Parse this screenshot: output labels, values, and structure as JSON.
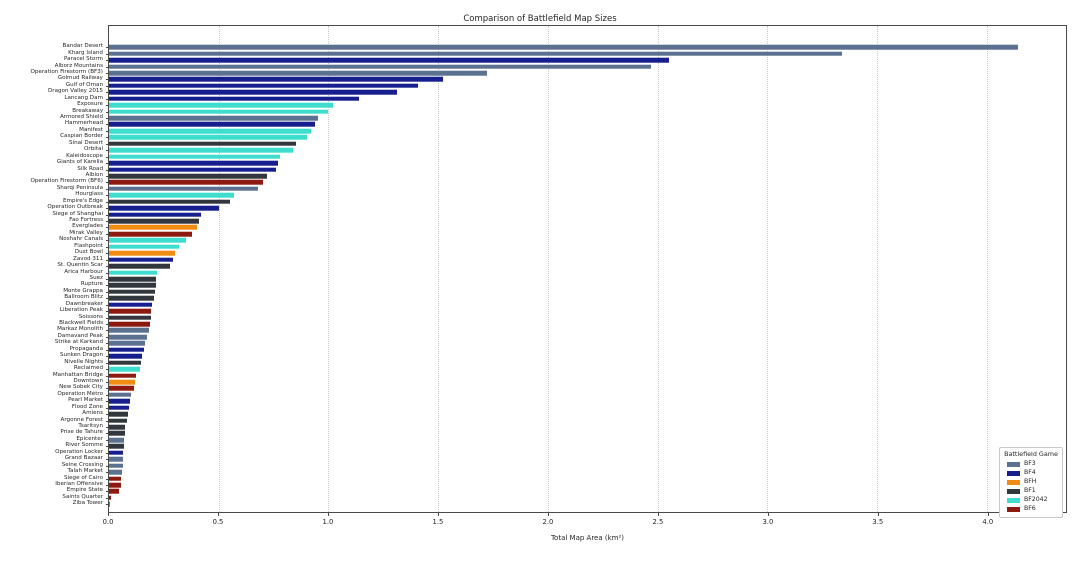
{
  "chart_data": {
    "type": "bar",
    "orientation": "horizontal",
    "title": "Comparison of Battlefield Map Sizes",
    "xlabel": "Total Map Area (km²)",
    "x_min": 0,
    "x_max": 4.36,
    "x_ticks": [
      0.0,
      0.5,
      1.0,
      1.5,
      2.0,
      2.5,
      3.0,
      3.5,
      4.0
    ],
    "grid": "dotted-vertical",
    "legend_title": "Battlefield Game",
    "legend_position": "lower right",
    "games": [
      {
        "label": "BF3",
        "color": "#5c708f"
      },
      {
        "label": "BF4",
        "color": "#171f8f"
      },
      {
        "label": "BFH",
        "color": "#f08c12"
      },
      {
        "label": "BF1",
        "color": "#31373d"
      },
      {
        "label": "BF2042",
        "color": "#3fddcd"
      },
      {
        "label": "BF6",
        "color": "#8c1a10"
      }
    ],
    "maps": [
      {
        "name": "Bandar Desert",
        "area_km2": 4.14,
        "game": "BF3"
      },
      {
        "name": "Kharg Island",
        "area_km2": 3.34,
        "game": "BF3"
      },
      {
        "name": "Paracel Storm",
        "area_km2": 2.55,
        "game": "BF4"
      },
      {
        "name": "Alborz Mountains",
        "area_km2": 2.47,
        "game": "BF3"
      },
      {
        "name": "Operation Firestorm (BF3)",
        "area_km2": 1.72,
        "game": "BF3"
      },
      {
        "name": "Golmud Railway",
        "area_km2": 1.52,
        "game": "BF4"
      },
      {
        "name": "Gulf of Oman",
        "area_km2": 1.41,
        "game": "BF4"
      },
      {
        "name": "Dragon Valley 2015",
        "area_km2": 1.31,
        "game": "BF4"
      },
      {
        "name": "Lancang Dam",
        "area_km2": 1.14,
        "game": "BF4"
      },
      {
        "name": "Exposure",
        "area_km2": 1.02,
        "game": "BF2042"
      },
      {
        "name": "Breakaway",
        "area_km2": 1.0,
        "game": "BF2042"
      },
      {
        "name": "Armored Shield",
        "area_km2": 0.95,
        "game": "BF3"
      },
      {
        "name": "Hammerhead",
        "area_km2": 0.94,
        "game": "BF4"
      },
      {
        "name": "Manifest",
        "area_km2": 0.92,
        "game": "BF2042"
      },
      {
        "name": "Caspian Border",
        "area_km2": 0.9,
        "game": "BF2042"
      },
      {
        "name": "Sinai Desert",
        "area_km2": 0.85,
        "game": "BF1"
      },
      {
        "name": "Orbital",
        "area_km2": 0.84,
        "game": "BF2042"
      },
      {
        "name": "Kaleidoscope",
        "area_km2": 0.78,
        "game": "BF2042"
      },
      {
        "name": "Giants of Karelia",
        "area_km2": 0.77,
        "game": "BF4"
      },
      {
        "name": "Silk Road",
        "area_km2": 0.76,
        "game": "BF4"
      },
      {
        "name": "Albion",
        "area_km2": 0.72,
        "game": "BF1"
      },
      {
        "name": "Operation Firestorm (BF6)",
        "area_km2": 0.7,
        "game": "BF6"
      },
      {
        "name": "Sharqi Peninsula",
        "area_km2": 0.68,
        "game": "BF3"
      },
      {
        "name": "Hourglass",
        "area_km2": 0.57,
        "game": "BF2042"
      },
      {
        "name": "Empire's Edge",
        "area_km2": 0.55,
        "game": "BF1"
      },
      {
        "name": "Operation Outbreak",
        "area_km2": 0.5,
        "game": "BF4"
      },
      {
        "name": "Siege of Shanghai",
        "area_km2": 0.42,
        "game": "BF4"
      },
      {
        "name": "Fao Fortress",
        "area_km2": 0.41,
        "game": "BF1"
      },
      {
        "name": "Everglades",
        "area_km2": 0.4,
        "game": "BFH"
      },
      {
        "name": "Mirak Valley",
        "area_km2": 0.38,
        "game": "BF6"
      },
      {
        "name": "Noshahr Canals",
        "area_km2": 0.35,
        "game": "BF2042"
      },
      {
        "name": "Flashpoint",
        "area_km2": 0.32,
        "game": "BF2042"
      },
      {
        "name": "Dust Bowl",
        "area_km2": 0.3,
        "game": "BFH"
      },
      {
        "name": "Zavod 311",
        "area_km2": 0.29,
        "game": "BF4"
      },
      {
        "name": "St. Quentin Scar",
        "area_km2": 0.28,
        "game": "BF1"
      },
      {
        "name": "Arica Harbour",
        "area_km2": 0.22,
        "game": "BF2042"
      },
      {
        "name": "Suez",
        "area_km2": 0.215,
        "game": "BF1"
      },
      {
        "name": "Rupture",
        "area_km2": 0.212,
        "game": "BF1"
      },
      {
        "name": "Monte Grappa",
        "area_km2": 0.21,
        "game": "BF1"
      },
      {
        "name": "Ballroom Blitz",
        "area_km2": 0.205,
        "game": "BF1"
      },
      {
        "name": "Dawnbreaker",
        "area_km2": 0.195,
        "game": "BF4"
      },
      {
        "name": "Liberation Peak",
        "area_km2": 0.192,
        "game": "BF6"
      },
      {
        "name": "Soissons",
        "area_km2": 0.19,
        "game": "BF1"
      },
      {
        "name": "Blackwell Fields",
        "area_km2": 0.188,
        "game": "BF6"
      },
      {
        "name": "Markaz Monolith",
        "area_km2": 0.18,
        "game": "BF3"
      },
      {
        "name": "Damavand Peak",
        "area_km2": 0.175,
        "game": "BF3"
      },
      {
        "name": "Strike at Karkand",
        "area_km2": 0.165,
        "game": "BF3"
      },
      {
        "name": "Propaganda",
        "area_km2": 0.16,
        "game": "BF4"
      },
      {
        "name": "Sunken Dragon",
        "area_km2": 0.15,
        "game": "BF4"
      },
      {
        "name": "Nivelle Nights",
        "area_km2": 0.145,
        "game": "BF1"
      },
      {
        "name": "Reclaimed",
        "area_km2": 0.14,
        "game": "BF2042"
      },
      {
        "name": "Manhattan Bridge",
        "area_km2": 0.125,
        "game": "BF6"
      },
      {
        "name": "Downtown",
        "area_km2": 0.12,
        "game": "BFH"
      },
      {
        "name": "New Sobek City",
        "area_km2": 0.115,
        "game": "BF6"
      },
      {
        "name": "Operation Métro",
        "area_km2": 0.1,
        "game": "BF3"
      },
      {
        "name": "Pearl Market",
        "area_km2": 0.095,
        "game": "BF4"
      },
      {
        "name": "Flood Zone",
        "area_km2": 0.091,
        "game": "BF4"
      },
      {
        "name": "Amiens",
        "area_km2": 0.085,
        "game": "BF1"
      },
      {
        "name": "Argonne Forest",
        "area_km2": 0.08,
        "game": "BF1"
      },
      {
        "name": "Tsaritsyn",
        "area_km2": 0.073,
        "game": "BF1"
      },
      {
        "name": "Prise de Tahure",
        "area_km2": 0.071,
        "game": "BF1"
      },
      {
        "name": "Epicenter",
        "area_km2": 0.07,
        "game": "BF3"
      },
      {
        "name": "River Somme",
        "area_km2": 0.068,
        "game": "BF1"
      },
      {
        "name": "Operation Locker",
        "area_km2": 0.066,
        "game": "BF4"
      },
      {
        "name": "Grand Bazaar",
        "area_km2": 0.064,
        "game": "BF3"
      },
      {
        "name": "Seine Crossing",
        "area_km2": 0.062,
        "game": "BF3"
      },
      {
        "name": "Talah Market",
        "area_km2": 0.06,
        "game": "BF3"
      },
      {
        "name": "Siege of Cairo",
        "area_km2": 0.056,
        "game": "BF6"
      },
      {
        "name": "Iberian Offensive",
        "area_km2": 0.054,
        "game": "BF6"
      },
      {
        "name": "Empire State",
        "area_km2": 0.046,
        "game": "BF6"
      },
      {
        "name": "Saints Quarter",
        "area_km2": 0.01,
        "game": "BF6"
      },
      {
        "name": "Ziba Tower",
        "area_km2": 0.004,
        "game": "BF3"
      }
    ]
  }
}
